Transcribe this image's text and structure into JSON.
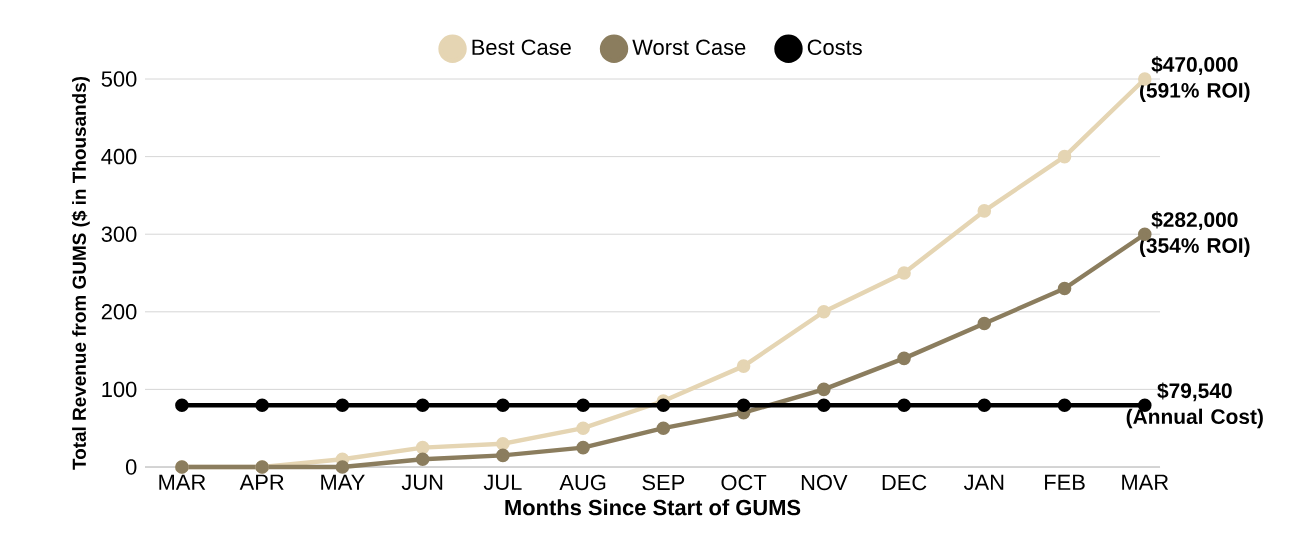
{
  "chart_data": {
    "type": "line",
    "xlabel": "Months Since Start of GUMS",
    "ylabel": "Total Revenue from GUMS ($ in Thousands)",
    "categories": [
      "MAR",
      "APR",
      "MAY",
      "JUN",
      "JUL",
      "AUG",
      "SEP",
      "OCT",
      "NOV",
      "DEC",
      "JAN",
      "FEB",
      "MAR"
    ],
    "series": [
      {
        "name": "Best Case",
        "color": "#e5d5b3",
        "values": [
          0,
          0,
          10,
          25,
          30,
          50,
          85,
          130,
          200,
          250,
          330,
          400,
          500
        ]
      },
      {
        "name": "Worst Case",
        "color": "#8b7d5e",
        "values": [
          0,
          0,
          0,
          10,
          15,
          25,
          50,
          70,
          100,
          140,
          185,
          230,
          300
        ]
      },
      {
        "name": "Costs",
        "color": "#000000",
        "values": [
          79.54,
          79.54,
          79.54,
          79.54,
          79.54,
          79.54,
          79.54,
          79.54,
          79.54,
          79.54,
          79.54,
          79.54,
          79.54
        ]
      }
    ],
    "ylim": [
      0,
      500
    ],
    "yticks": [
      0,
      100,
      200,
      300,
      400,
      500
    ],
    "grid": "y",
    "legend": "top",
    "marker": "circle",
    "annotations": [
      "$470,000 (591% ROI)",
      "$282,000 (354% ROI)",
      "$79,540 (Annual Cost)"
    ]
  }
}
